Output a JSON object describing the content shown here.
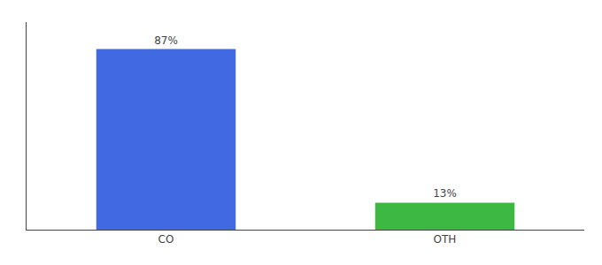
{
  "chart_data": {
    "type": "bar",
    "categories": [
      "CO",
      "OTH"
    ],
    "values": [
      87,
      13
    ],
    "value_labels": [
      "87%",
      "13%"
    ],
    "colors": [
      "#4169e1",
      "#3cb843"
    ],
    "ylim": [
      0,
      100
    ],
    "data_labels": true,
    "tick_labels": "x",
    "grid": false
  }
}
